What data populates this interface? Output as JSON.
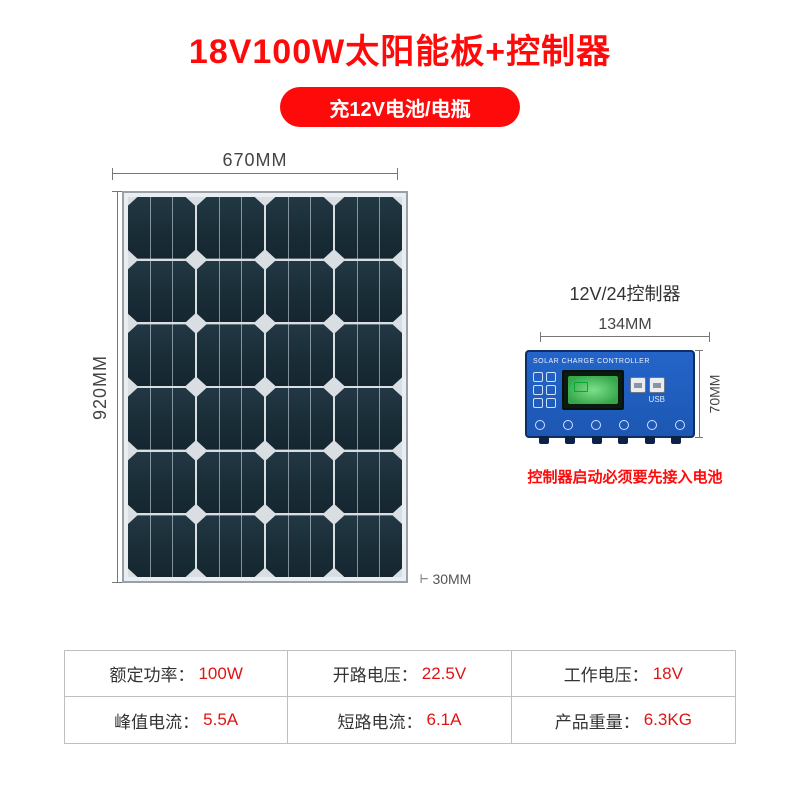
{
  "colors": {
    "accent_red": "#ff0a0a",
    "pill_bg": "#ff0a0a",
    "pill_text": "#ffffff",
    "warning_red": "#ff0a0a",
    "spec_value_red": "#e01414",
    "spec_label": "#333333",
    "dim_text": "#444444",
    "table_border": "#bfbfbf",
    "panel_cell_dark": "#1a2e38",
    "panel_frame": "#9aa0a5",
    "controller_bg": "#1d57b3",
    "controller_border": "#0e2f63",
    "lcd_green": "#35a64a",
    "background": "#ffffff"
  },
  "title": "18V100W太阳能板+控制器",
  "pill_text": "充12V电池/电瓶",
  "panel": {
    "width_label": "670MM",
    "height_label": "920MM",
    "depth_label": "30MM",
    "cell_grid": {
      "cols": 4,
      "rows": 6
    }
  },
  "controller": {
    "title": "12V/24控制器",
    "width_label": "134MM",
    "height_label": "70MM",
    "device_label": "SOLAR CHARGE CONTROLLER",
    "usb_label": "USB",
    "warning": "控制器启动必须要先接入电池"
  },
  "specs": [
    {
      "label": "额定功率：",
      "value": "100W"
    },
    {
      "label": "开路电压：",
      "value": "22.5V"
    },
    {
      "label": "工作电压：",
      "value": "18V"
    },
    {
      "label": "峰值电流：",
      "value": "5.5A"
    },
    {
      "label": "短路电流：",
      "value": "6.1A"
    },
    {
      "label": "产品重量：",
      "value": "6.3KG"
    }
  ]
}
